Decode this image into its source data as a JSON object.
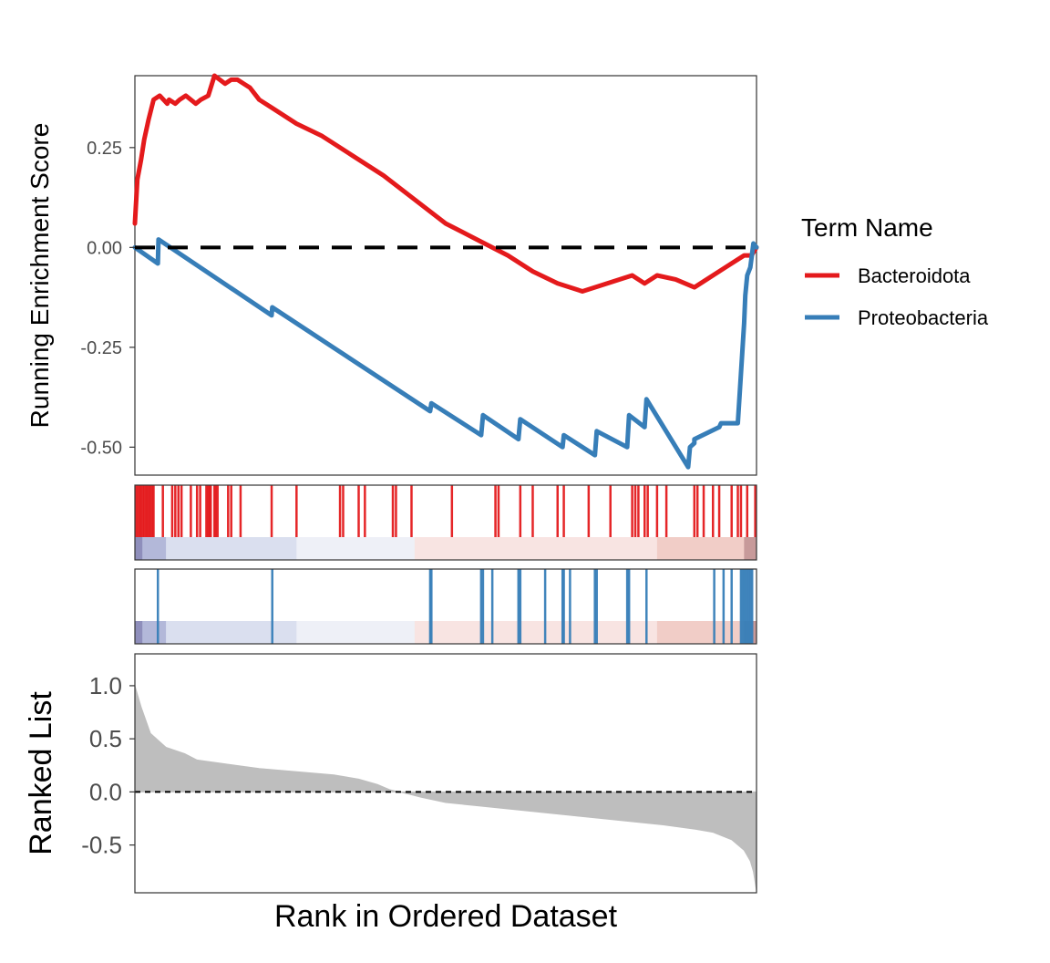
{
  "chart_data": {
    "type": "line",
    "legend": {
      "title": "Term Name",
      "placement": "right",
      "items": [
        {
          "label": "Bacteroidota",
          "color": "#E41A1C"
        },
        {
          "label": "Proteobacteria",
          "color": "#377EB8"
        }
      ]
    },
    "enrichment_panel": {
      "ylabel": "Running Enrichment Score",
      "ylim": [
        -0.57,
        0.43
      ],
      "y_ticks": [
        "0.25",
        "0.00",
        "-0.25",
        "-0.50"
      ],
      "y_tick_values": [
        0.25,
        0,
        -0.25,
        -0.5
      ],
      "reference_line": 0,
      "x_range": [
        0,
        1
      ],
      "series": [
        {
          "name": "Bacteroidota",
          "color": "#E41A1C",
          "x": [
            0.0,
            0.004,
            0.01,
            0.015,
            0.022,
            0.03,
            0.04,
            0.052,
            0.055,
            0.065,
            0.072,
            0.082,
            0.098,
            0.106,
            0.118,
            0.128,
            0.145,
            0.155,
            0.165,
            0.175,
            0.185,
            0.2,
            0.22,
            0.26,
            0.3,
            0.35,
            0.4,
            0.45,
            0.5,
            0.55,
            0.6,
            0.64,
            0.68,
            0.72,
            0.76,
            0.8,
            0.82,
            0.84,
            0.87,
            0.9,
            0.92,
            0.95,
            0.97,
            0.98,
            0.992,
            1.0
          ],
          "values": [
            0.06,
            0.17,
            0.22,
            0.27,
            0.32,
            0.37,
            0.38,
            0.36,
            0.37,
            0.36,
            0.37,
            0.38,
            0.36,
            0.37,
            0.38,
            0.43,
            0.41,
            0.42,
            0.42,
            0.41,
            0.4,
            0.37,
            0.35,
            0.31,
            0.28,
            0.23,
            0.18,
            0.12,
            0.06,
            0.02,
            -0.02,
            -0.06,
            -0.09,
            -0.11,
            -0.09,
            -0.07,
            -0.09,
            -0.07,
            -0.08,
            -0.1,
            -0.08,
            -0.05,
            -0.03,
            -0.02,
            -0.02,
            0.0
          ]
        },
        {
          "name": "Proteobacteria",
          "color": "#377EB8",
          "x": [
            0.0,
            0.037,
            0.038,
            0.22,
            0.221,
            0.475,
            0.477,
            0.557,
            0.56,
            0.617,
            0.62,
            0.688,
            0.69,
            0.74,
            0.743,
            0.792,
            0.795,
            0.82,
            0.823,
            0.89,
            0.893,
            0.9,
            0.9,
            0.94,
            0.943,
            0.97,
            0.98,
            0.982,
            0.985,
            0.99,
            0.995,
            1.0
          ],
          "values": [
            0.0,
            -0.04,
            0.02,
            -0.17,
            -0.15,
            -0.41,
            -0.39,
            -0.47,
            -0.42,
            -0.48,
            -0.43,
            -0.5,
            -0.47,
            -0.52,
            -0.46,
            -0.5,
            -0.42,
            -0.45,
            -0.38,
            -0.55,
            -0.5,
            -0.49,
            -0.48,
            -0.45,
            -0.44,
            -0.44,
            -0.19,
            -0.12,
            -0.07,
            -0.05,
            0.01,
            0.0
          ]
        }
      ]
    },
    "hit_panels": [
      {
        "name": "Bacteroidota",
        "color": "#E41A1C",
        "hits": [
          0.002,
          0.005,
          0.008,
          0.01,
          0.013,
          0.015,
          0.018,
          0.02,
          0.023,
          0.025,
          0.028,
          0.03,
          0.045,
          0.06,
          0.065,
          0.07,
          0.075,
          0.09,
          0.1,
          0.105,
          0.115,
          0.118,
          0.12,
          0.122,
          0.128,
          0.13,
          0.133,
          0.15,
          0.155,
          0.17,
          0.22,
          0.26,
          0.33,
          0.335,
          0.36,
          0.37,
          0.415,
          0.42,
          0.445,
          0.51,
          0.58,
          0.585,
          0.62,
          0.64,
          0.68,
          0.69,
          0.73,
          0.765,
          0.8,
          0.805,
          0.81,
          0.82,
          0.825,
          0.84,
          0.855,
          0.9,
          0.905,
          0.915,
          0.93,
          0.94,
          0.96,
          0.97,
          0.975,
          0.985,
          0.998
        ]
      },
      {
        "name": "Proteobacteria",
        "color": "#377EB8",
        "hits": [
          0.037,
          0.221,
          0.475,
          0.477,
          0.557,
          0.56,
          0.575,
          0.617,
          0.62,
          0.66,
          0.688,
          0.69,
          0.7,
          0.74,
          0.743,
          0.792,
          0.795,
          0.823,
          0.932,
          0.947,
          0.96,
          0.975,
          0.978,
          0.981,
          0.984,
          0.987,
          0.99,
          0.993
        ]
      }
    ],
    "ranked_list_panel": {
      "ylabel": "Ranked List",
      "xlabel": "Rank in Ordered Dataset",
      "ylim": [
        -0.95,
        1.3
      ],
      "y_ticks": [
        "1.0",
        "0.5",
        "0.0",
        "-0.5"
      ],
      "y_tick_values": [
        1.0,
        0.5,
        0.0,
        -0.5
      ],
      "reference_line": 0,
      "x": [
        0.0,
        0.01,
        0.025,
        0.05,
        0.08,
        0.1,
        0.15,
        0.2,
        0.26,
        0.32,
        0.36,
        0.39,
        0.41,
        0.44,
        0.46,
        0.5,
        0.55,
        0.6,
        0.65,
        0.7,
        0.75,
        0.8,
        0.85,
        0.9,
        0.93,
        0.96,
        0.98,
        0.99,
        0.995,
        1.0
      ],
      "values": [
        1.0,
        0.8,
        0.55,
        0.42,
        0.36,
        0.3,
        0.26,
        0.22,
        0.19,
        0.16,
        0.12,
        0.07,
        0.02,
        -0.02,
        -0.05,
        -0.1,
        -0.13,
        -0.16,
        -0.19,
        -0.22,
        -0.25,
        -0.28,
        -0.31,
        -0.35,
        -0.38,
        -0.45,
        -0.55,
        -0.65,
        -0.75,
        -0.93
      ],
      "color": "#BEBEBE"
    }
  }
}
